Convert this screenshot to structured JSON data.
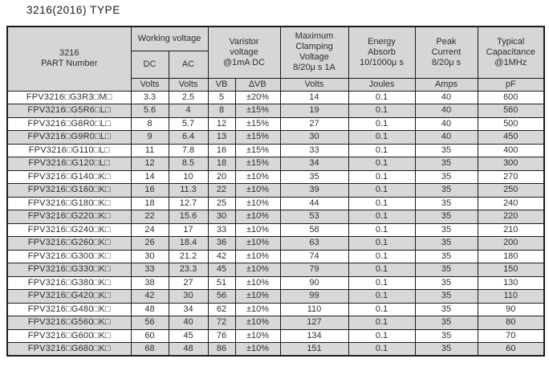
{
  "title": "3216(2016) TYPE",
  "colors": {
    "header_bg": "#d6d6d6",
    "alt_row_bg": "#d8d8d8",
    "border": "#1c1c1c",
    "text": "#2e2e2e"
  },
  "header": {
    "part_number": "3216\nPART Number",
    "working_voltage": "Working voltage",
    "dc": "DC",
    "ac": "AC",
    "varistor_voltage": "Varistor\nvoltage\n@1mA DC",
    "max_clamping": "Maximum\nClamping\nVoltage\n8/20μ s 1A",
    "energy_absorb": "Energy\nAbsorb\n10/1000μ s",
    "peak_current": "Peak\nCurrent\n8/20μ s",
    "typical_capacitance": "Typical\nCapacitance\n@1MHz",
    "units": {
      "dc": "Volts",
      "ac": "Volts",
      "vb": "VB",
      "dvb": "∆VB",
      "clamping": "Volts",
      "energy": "Joules",
      "peak": "Amps",
      "capacitance": "pF"
    }
  },
  "column_names": [
    "part-number-cell",
    "dc-volts-cell",
    "ac-volts-cell",
    "vb-cell",
    "delta-vb-cell",
    "clamping-voltage-cell",
    "energy-cell",
    "peak-current-cell",
    "capacitance-cell"
  ],
  "rows": [
    [
      "FPV3216□G3R3□M□",
      "3.3",
      "2.5",
      "5",
      "±20%",
      "14",
      "0.1",
      "40",
      "600"
    ],
    [
      "FPV3216□G5R6□L□",
      "5.6",
      "4",
      "8",
      "±15%",
      "19",
      "0.1",
      "40",
      "560"
    ],
    [
      "FPV3216□G8R0□L□",
      "8",
      "5.7",
      "12",
      "±15%",
      "27",
      "0.1",
      "40",
      "500"
    ],
    [
      "FPV3216□G9R0□L□",
      "9",
      "6.4",
      "13",
      "±15%",
      "30",
      "0.1",
      "40",
      "450"
    ],
    [
      "FPV3216□G110□L□",
      "11",
      "7.8",
      "16",
      "±15%",
      "33",
      "0.1",
      "35",
      "400"
    ],
    [
      "FPV3216□G120□L□",
      "12",
      "8.5",
      "18",
      "±15%",
      "34",
      "0.1",
      "35",
      "300"
    ],
    [
      "FPV3216□G140□K□",
      "14",
      "10",
      "20",
      "±10%",
      "35",
      "0.1",
      "35",
      "270"
    ],
    [
      "FPV3216□G160□K□",
      "16",
      "11.3",
      "22",
      "±10%",
      "39",
      "0.1",
      "35",
      "250"
    ],
    [
      "FPV3216□G180□K□",
      "18",
      "12.7",
      "25",
      "±10%",
      "44",
      "0.1",
      "35",
      "240"
    ],
    [
      "FPV3216□G220□K□",
      "22",
      "15.6",
      "30",
      "±10%",
      "53",
      "0.1",
      "35",
      "220"
    ],
    [
      "FPV3216□G240□K□",
      "24",
      "17",
      "33",
      "±10%",
      "58",
      "0.1",
      "35",
      "210"
    ],
    [
      "FPV3216□G260□K□",
      "26",
      "18.4",
      "36",
      "±10%",
      "63",
      "0.1",
      "35",
      "200"
    ],
    [
      "FPV3216□G300□K□",
      "30",
      "21.2",
      "42",
      "±10%",
      "74",
      "0.1",
      "35",
      "180"
    ],
    [
      "FPV3216□G330□K□",
      "33",
      "23.3",
      "45",
      "±10%",
      "79",
      "0.1",
      "35",
      "150"
    ],
    [
      "FPV3216□G380□K□",
      "38",
      "27",
      "51",
      "±10%",
      "90",
      "0.1",
      "35",
      "130"
    ],
    [
      "FPV3216□G420□K□",
      "42",
      "30",
      "56",
      "±10%",
      "99",
      "0.1",
      "35",
      "110"
    ],
    [
      "FPV3216□G480□K□",
      "48",
      "34",
      "62",
      "±10%",
      "110",
      "0.1",
      "35",
      "90"
    ],
    [
      "FPV3216□G560□K□",
      "56",
      "40",
      "72",
      "±10%",
      "127",
      "0.1",
      "35",
      "80"
    ],
    [
      "FPV3216□G600□K□",
      "60",
      "45",
      "76",
      "±10%",
      "134",
      "0.1",
      "35",
      "70"
    ],
    [
      "FPV3216□G680□K□",
      "68",
      "48",
      "86",
      "±10%",
      "151",
      "0.1",
      "35",
      "60"
    ]
  ]
}
